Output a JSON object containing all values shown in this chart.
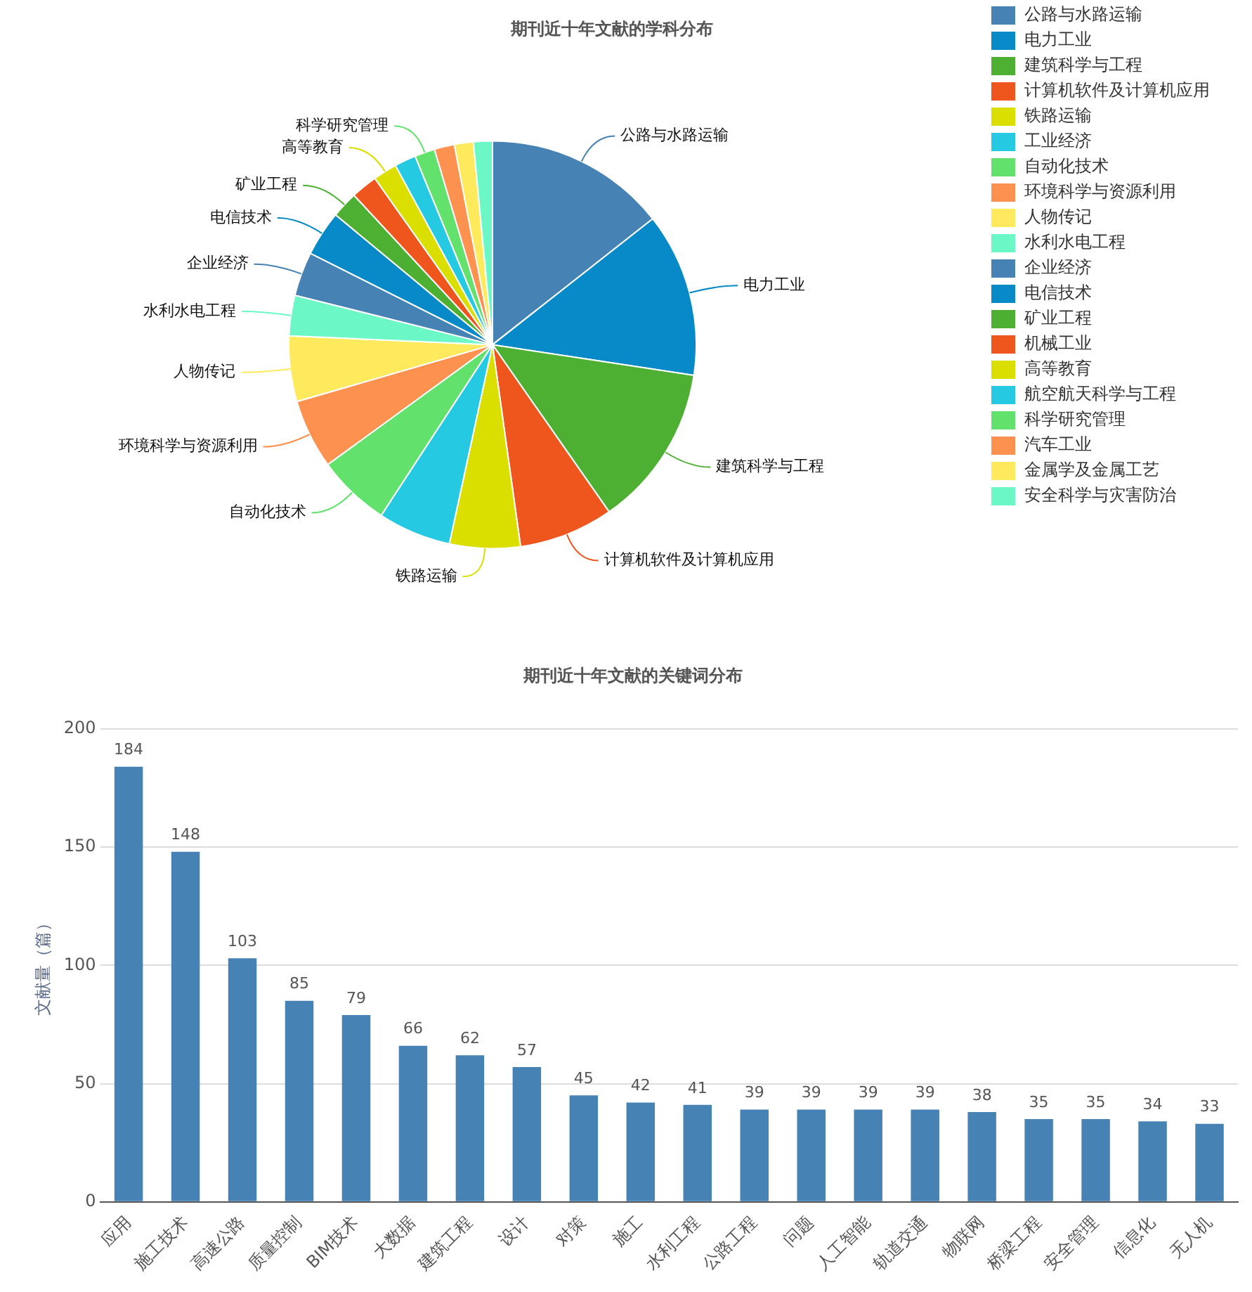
{
  "chart_data": [
    {
      "type": "pie",
      "title": "期刊近十年文献的学科分布",
      "legend": "right",
      "categories": [
        "公路与水路运输",
        "电力工业",
        "建筑科学与工程",
        "计算机软件及计算机应用",
        "铁路运输",
        "工业经济",
        "自动化技术",
        "环境科学与资源利用",
        "人物传记",
        "水利水电工程",
        "企业经济",
        "电信技术",
        "矿业工程",
        "机械工业",
        "高等教育",
        "航空航天科学与工程",
        "科学研究管理",
        "汽车工业",
        "金属学及金属工艺",
        "安全科学与灾害防治"
      ],
      "values": [
        14.4,
        13.0,
        12.9,
        7.5,
        5.6,
        5.8,
        5.8,
        5.5,
        5.2,
        3.2,
        3.5,
        3.6,
        2.1,
        2.1,
        1.9,
        1.7,
        1.6,
        1.6,
        1.5,
        1.5
      ],
      "colors": [
        "#4682b4",
        "#088ac8",
        "#4eb032",
        "#ee561e",
        "#dadf00",
        "#25c9e2",
        "#62e26c",
        "#fd9150",
        "#feea5c",
        "#6cf8c6",
        "#4682b4",
        "#088ac8",
        "#4eb032",
        "#ee561e",
        "#dadf00",
        "#25c9e2",
        "#62e26c",
        "#fd9150",
        "#feea5c",
        "#6cf8c6"
      ]
    },
    {
      "type": "bar",
      "title": "期刊近十年文献的关键词分布",
      "ylabel": "文献量（篇）",
      "color": "#4682b4",
      "legend": false,
      "grid": "y",
      "data_labels": true,
      "categories": [
        "应用",
        "施工技术",
        "高速公路",
        "质量控制",
        "BIM技术",
        "大数据",
        "建筑工程",
        "设计",
        "对策",
        "施工",
        "水利工程",
        "公路工程",
        "问题",
        "人工智能",
        "轨道交通",
        "物联网",
        "桥梁工程",
        "安全管理",
        "信息化",
        "无人机"
      ],
      "values": [
        184,
        148,
        103,
        85,
        79,
        66,
        62,
        57,
        45,
        42,
        41,
        39,
        39,
        39,
        39,
        38,
        35,
        35,
        34,
        33
      ],
      "ylim": [
        0,
        200
      ],
      "yticks": [
        0,
        50,
        100,
        150,
        200
      ]
    }
  ]
}
